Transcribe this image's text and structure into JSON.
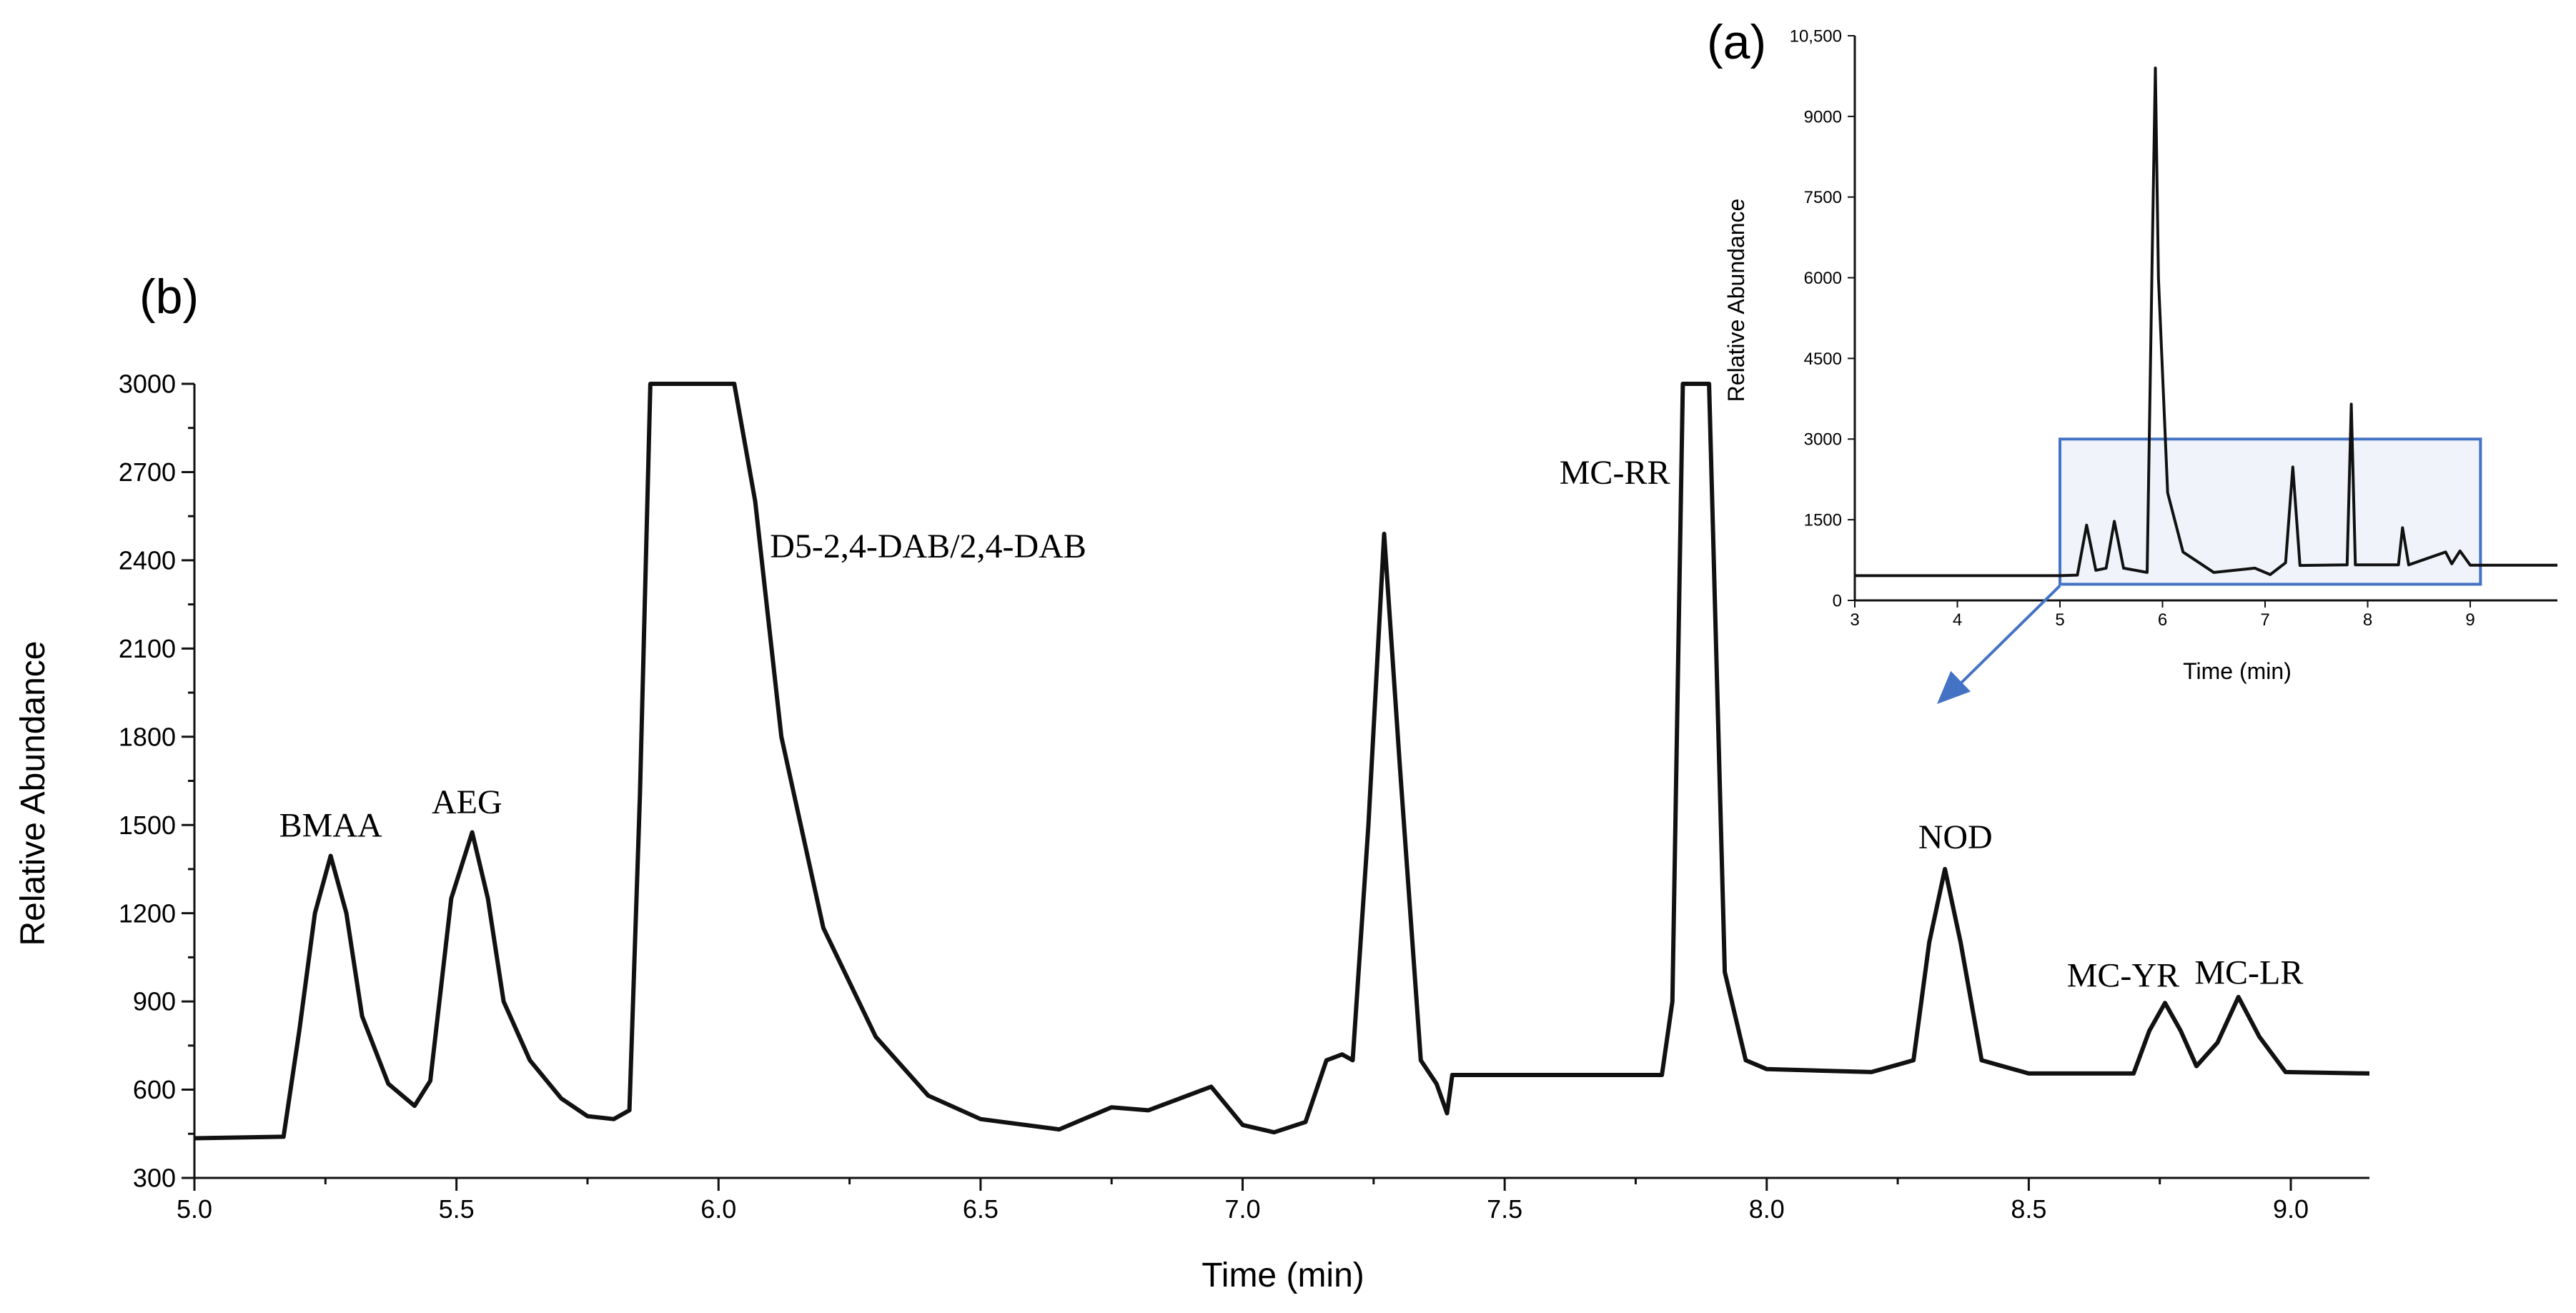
{
  "chart_data": [
    {
      "panel_label": "(b)",
      "type": "line",
      "xlabel": "Time (min)",
      "ylabel": "Relative Abundance",
      "xlim": [
        5.0,
        9.15
      ],
      "ylim": [
        300,
        3000
      ],
      "x_ticks": [
        "5.0",
        "5.5",
        "6.0",
        "6.5",
        "7.0",
        "7.5",
        "8.0",
        "8.5",
        "9.0"
      ],
      "y_ticks": [
        "300",
        "600",
        "900",
        "1200",
        "1500",
        "1800",
        "2100",
        "2400",
        "2700",
        "3000"
      ],
      "grid": false,
      "series": [
        {
          "color": "#111111",
          "points": [
            [
              5.0,
              435
            ],
            [
              5.17,
              440
            ],
            [
              5.2,
              800
            ],
            [
              5.23,
              1200
            ],
            [
              5.26,
              1395
            ],
            [
              5.29,
              1200
            ],
            [
              5.32,
              850
            ],
            [
              5.37,
              620
            ],
            [
              5.42,
              545
            ],
            [
              5.45,
              630
            ],
            [
              5.49,
              1250
            ],
            [
              5.53,
              1475
            ],
            [
              5.56,
              1250
            ],
            [
              5.59,
              900
            ],
            [
              5.64,
              700
            ],
            [
              5.7,
              570
            ],
            [
              5.75,
              510
            ],
            [
              5.8,
              500
            ],
            [
              5.83,
              530
            ],
            [
              5.85,
              1600
            ],
            [
              5.87,
              3000
            ],
            [
              6.03,
              3000
            ],
            [
              6.07,
              2600
            ],
            [
              6.12,
              1800
            ],
            [
              6.2,
              1150
            ],
            [
              6.3,
              780
            ],
            [
              6.4,
              580
            ],
            [
              6.5,
              500
            ],
            [
              6.65,
              465
            ],
            [
              6.75,
              540
            ],
            [
              6.82,
              530
            ],
            [
              6.88,
              570
            ],
            [
              6.94,
              610
            ],
            [
              7.0,
              480
            ],
            [
              7.06,
              455
            ],
            [
              7.12,
              490
            ],
            [
              7.16,
              700
            ],
            [
              7.19,
              720
            ],
            [
              7.21,
              700
            ],
            [
              7.24,
              1500
            ],
            [
              7.27,
              2490
            ],
            [
              7.3,
              1700
            ],
            [
              7.34,
              700
            ],
            [
              7.37,
              620
            ],
            [
              7.39,
              520
            ],
            [
              7.4,
              650
            ],
            [
              7.8,
              650
            ],
            [
              7.82,
              900
            ],
            [
              7.84,
              3000
            ],
            [
              7.89,
              3000
            ],
            [
              7.92,
              1000
            ],
            [
              7.96,
              700
            ],
            [
              8.0,
              670
            ],
            [
              8.2,
              660
            ],
            [
              8.28,
              700
            ],
            [
              8.31,
              1100
            ],
            [
              8.34,
              1350
            ],
            [
              8.37,
              1100
            ],
            [
              8.41,
              700
            ],
            [
              8.5,
              655
            ],
            [
              8.7,
              655
            ],
            [
              8.73,
              800
            ],
            [
              8.76,
              895
            ],
            [
              8.79,
              800
            ],
            [
              8.82,
              680
            ],
            [
              8.86,
              760
            ],
            [
              8.9,
              915
            ],
            [
              8.94,
              780
            ],
            [
              8.99,
              660
            ],
            [
              9.15,
              655
            ]
          ]
        }
      ],
      "annotations": [
        {
          "text": "BMAA",
          "x": 5.26,
          "y": 1460
        },
        {
          "text": "AEG",
          "x": 5.52,
          "y": 1540
        },
        {
          "text": "D5-2,4-DAB/2,4-DAB",
          "x": 6.4,
          "y": 2410
        },
        {
          "text": "MC-RR",
          "x": 7.71,
          "y": 2660
        },
        {
          "text": "NOD",
          "x": 8.36,
          "y": 1420
        },
        {
          "text": "MC-YR",
          "x": 8.68,
          "y": 950
        },
        {
          "text": "MC-LR",
          "x": 8.92,
          "y": 960
        }
      ]
    },
    {
      "panel_label": "(a)",
      "type": "line",
      "xlabel": "Time (min)",
      "ylabel": "Relative Abundance",
      "xlim": [
        3,
        9.85
      ],
      "ylim": [
        0,
        10500
      ],
      "x_ticks": [
        "3",
        "4",
        "5",
        "6",
        "7",
        "8",
        "9"
      ],
      "y_ticks": [
        "0",
        "1500",
        "3000",
        "4500",
        "6000",
        "7500",
        "9000",
        "10,500"
      ],
      "grid": false,
      "zoom_box": {
        "x": [
          5.0,
          9.1
        ],
        "y": [
          300,
          3000
        ]
      },
      "series": [
        {
          "color": "#111111",
          "points": [
            [
              3.0,
              460
            ],
            [
              5.0,
              460
            ],
            [
              5.17,
              470
            ],
            [
              5.26,
              1400
            ],
            [
              5.35,
              560
            ],
            [
              5.45,
              600
            ],
            [
              5.53,
              1470
            ],
            [
              5.62,
              600
            ],
            [
              5.85,
              520
            ],
            [
              5.9,
              6500
            ],
            [
              5.93,
              9900
            ],
            [
              5.96,
              6000
            ],
            [
              6.05,
              2000
            ],
            [
              6.2,
              900
            ],
            [
              6.5,
              520
            ],
            [
              6.9,
              600
            ],
            [
              7.05,
              480
            ],
            [
              7.2,
              700
            ],
            [
              7.27,
              2480
            ],
            [
              7.34,
              650
            ],
            [
              7.8,
              660
            ],
            [
              7.84,
              3650
            ],
            [
              7.88,
              660
            ],
            [
              8.3,
              660
            ],
            [
              8.34,
              1350
            ],
            [
              8.4,
              660
            ],
            [
              8.76,
              900
            ],
            [
              8.82,
              680
            ],
            [
              8.9,
              920
            ],
            [
              9.0,
              655
            ],
            [
              9.85,
              655
            ]
          ]
        }
      ]
    }
  ]
}
